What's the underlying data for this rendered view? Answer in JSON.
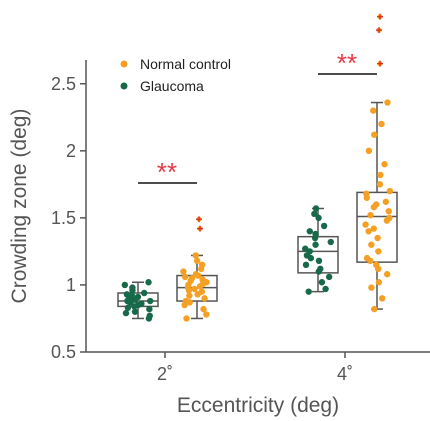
{
  "chart_data": {
    "type": "box",
    "title": "",
    "xlabel": "Eccentricity (deg)",
    "ylabel": "Crowding zone (deg)",
    "ylim": [
      0.5,
      3.05
    ],
    "yticks": [
      "0.5",
      "1",
      "1.5",
      "2",
      "2.5"
    ],
    "categories": [
      "2˚",
      "4˚"
    ],
    "legend": {
      "placement": "top-left",
      "entries": [
        "Normal control",
        "Glaucoma"
      ]
    },
    "colors": {
      "normal_control": "#f4a024",
      "glaucoma": "#17694a",
      "significance": "#e63946",
      "outlier": "#d62828"
    },
    "series": [
      {
        "name": "Glaucoma",
        "boxes": [
          {
            "category": "2˚",
            "whisker_low": 0.75,
            "q1": 0.84,
            "median": 0.88,
            "q3": 0.94,
            "whisker_high": 1.02,
            "points": [
              0.75,
              0.77,
              0.79,
              0.8,
              0.82,
              0.83,
              0.84,
              0.85,
              0.86,
              0.87,
              0.88,
              0.88,
              0.89,
              0.9,
              0.91,
              0.92,
              0.93,
              0.94,
              0.96,
              0.98,
              1.0,
              1.02
            ]
          },
          {
            "category": "4˚",
            "whisker_low": 0.95,
            "q1": 1.09,
            "median": 1.25,
            "q3": 1.36,
            "whisker_high": 1.57,
            "points": [
              0.95,
              0.97,
              1.02,
              1.06,
              1.1,
              1.12,
              1.15,
              1.18,
              1.2,
              1.22,
              1.25,
              1.27,
              1.3,
              1.32,
              1.35,
              1.38,
              1.4,
              1.44,
              1.5,
              1.53,
              1.57
            ]
          }
        ]
      },
      {
        "name": "Normal control",
        "boxes": [
          {
            "category": "2˚",
            "whisker_low": 0.75,
            "q1": 0.88,
            "median": 0.98,
            "q3": 1.07,
            "whisker_high": 1.22,
            "points": [
              0.75,
              0.78,
              0.82,
              0.85,
              0.87,
              0.88,
              0.9,
              0.92,
              0.93,
              0.95,
              0.96,
              0.97,
              0.98,
              0.99,
              1.0,
              1.01,
              1.02,
              1.03,
              1.04,
              1.05,
              1.06,
              1.07,
              1.08,
              1.1,
              1.12,
              1.15,
              1.18,
              1.22
            ],
            "outliers": [
              1.42,
              1.49
            ]
          },
          {
            "category": "4˚",
            "whisker_low": 0.82,
            "q1": 1.17,
            "median": 1.51,
            "q3": 1.69,
            "whisker_high": 2.36,
            "points": [
              0.82,
              0.9,
              0.98,
              1.02,
              1.08,
              1.12,
              1.15,
              1.18,
              1.2,
              1.25,
              1.3,
              1.35,
              1.4,
              1.42,
              1.45,
              1.48,
              1.5,
              1.52,
              1.55,
              1.58,
              1.6,
              1.62,
              1.65,
              1.68,
              1.7,
              1.75,
              1.82,
              1.9,
              2.0,
              2.12,
              2.2,
              2.3,
              2.36
            ],
            "outliers": [
              2.65,
              2.9,
              3.0
            ]
          }
        ]
      }
    ],
    "annotations": [
      {
        "category": "2˚",
        "label": "**"
      },
      {
        "category": "4˚",
        "label": "**"
      }
    ]
  }
}
